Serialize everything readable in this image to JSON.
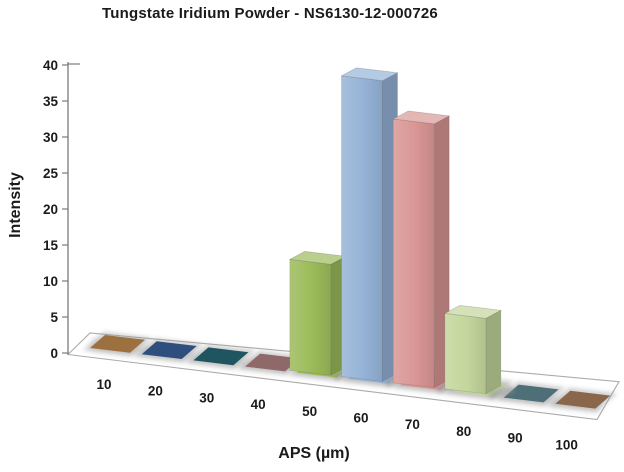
{
  "chart_data": {
    "type": "bar",
    "variant": "3d-column",
    "title": "Tungstate Iridium Powder - NS6130-12-000726",
    "xlabel": "APS (µm)",
    "ylabel": "Intensity",
    "ylim": [
      0,
      40
    ],
    "yticks": [
      0,
      5,
      10,
      15,
      20,
      25,
      30,
      35,
      40
    ],
    "grid": false,
    "legend": false,
    "categories": [
      "10",
      "20",
      "30",
      "40",
      "50",
      "60",
      "70",
      "80",
      "90",
      "100"
    ],
    "values": [
      0.4,
      0.4,
      0.4,
      0.4,
      13,
      38.5,
      32.5,
      5.5,
      0.4,
      0.4
    ],
    "bar_colors": [
      "#9C713F",
      "#2E4E7E",
      "#1F5560",
      "#8F686A",
      "#9BBB59",
      "#95B3D7",
      "#D99694",
      "#C3D69B",
      "#4E6F77",
      "#8A674B"
    ]
  },
  "colors": {
    "background": "#ffffff",
    "text": "#1a1a1a",
    "axis": "#707070",
    "floor_outline": "#ababab",
    "shadow": "#a8a8a8"
  }
}
